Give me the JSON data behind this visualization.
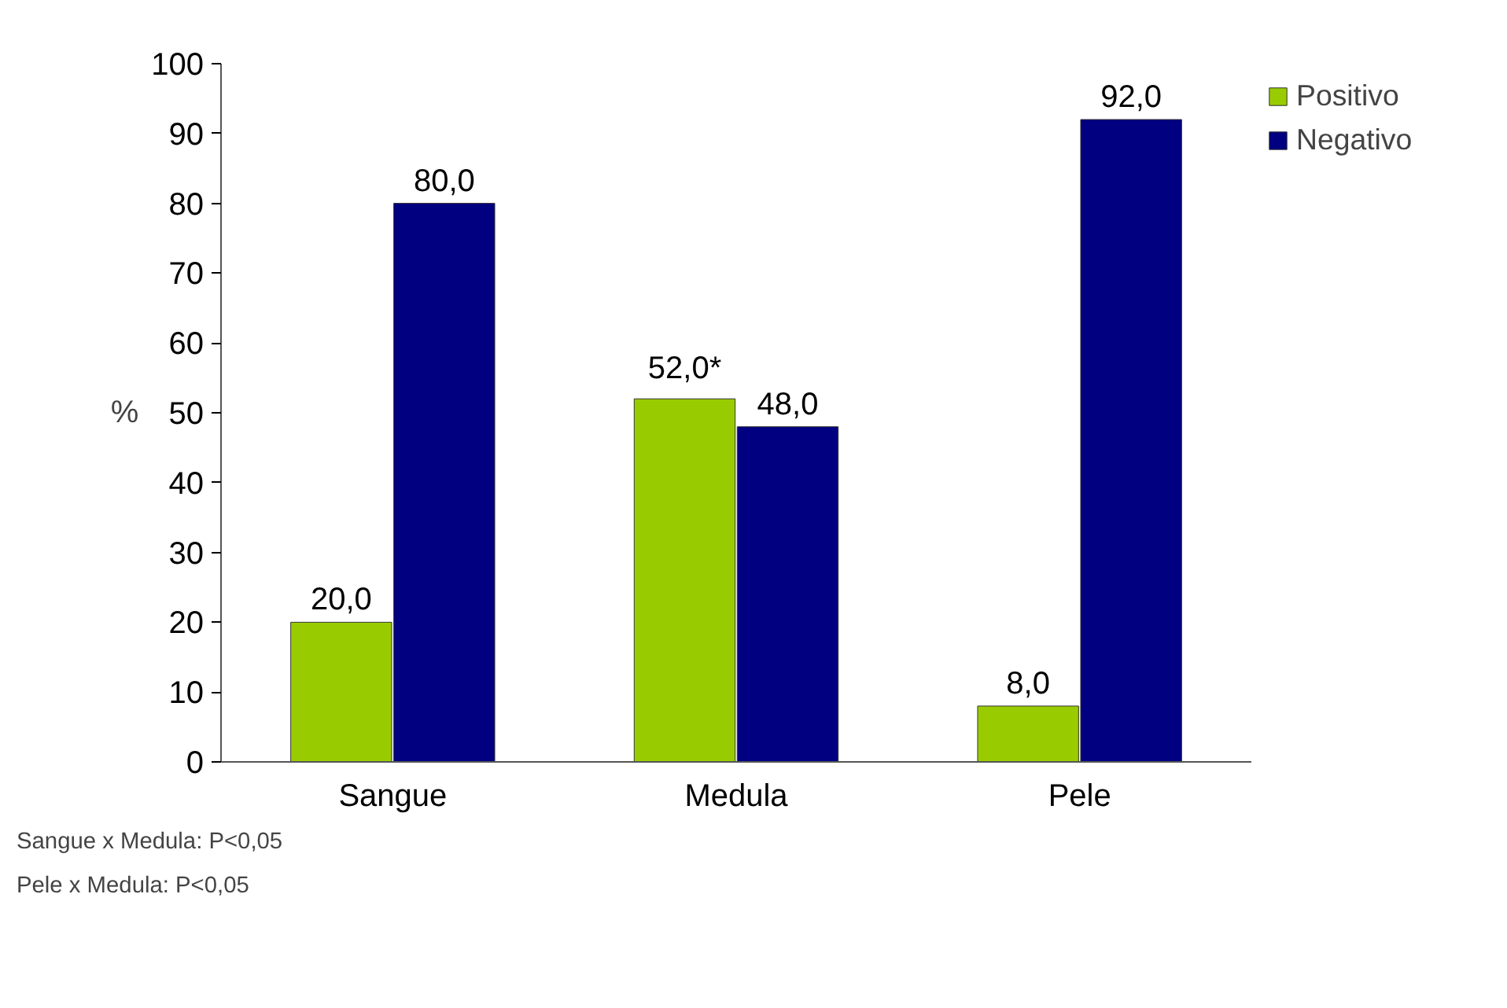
{
  "chart_data": {
    "type": "bar",
    "categories": [
      "Sangue",
      "Medula",
      "Pele"
    ],
    "ylabel": "%",
    "ylim": [
      0,
      100
    ],
    "yticks": [
      0,
      10,
      20,
      30,
      40,
      50,
      60,
      70,
      80,
      90,
      100
    ],
    "legend": "right",
    "series": [
      {
        "name": "Positivo",
        "color": "#99cc00",
        "values": [
          20,
          52,
          8
        ],
        "value_labels": [
          "20,0",
          "52,0*",
          "8,0"
        ]
      },
      {
        "name": "Negativo",
        "color": "#000080",
        "values": [
          80,
          48,
          92
        ],
        "value_labels": [
          "80,0",
          "48,0",
          "92,0"
        ]
      }
    ],
    "annotations": [
      "Sangue x Medula: P<0,05",
      "Pele x Medula: P<0,05"
    ]
  }
}
